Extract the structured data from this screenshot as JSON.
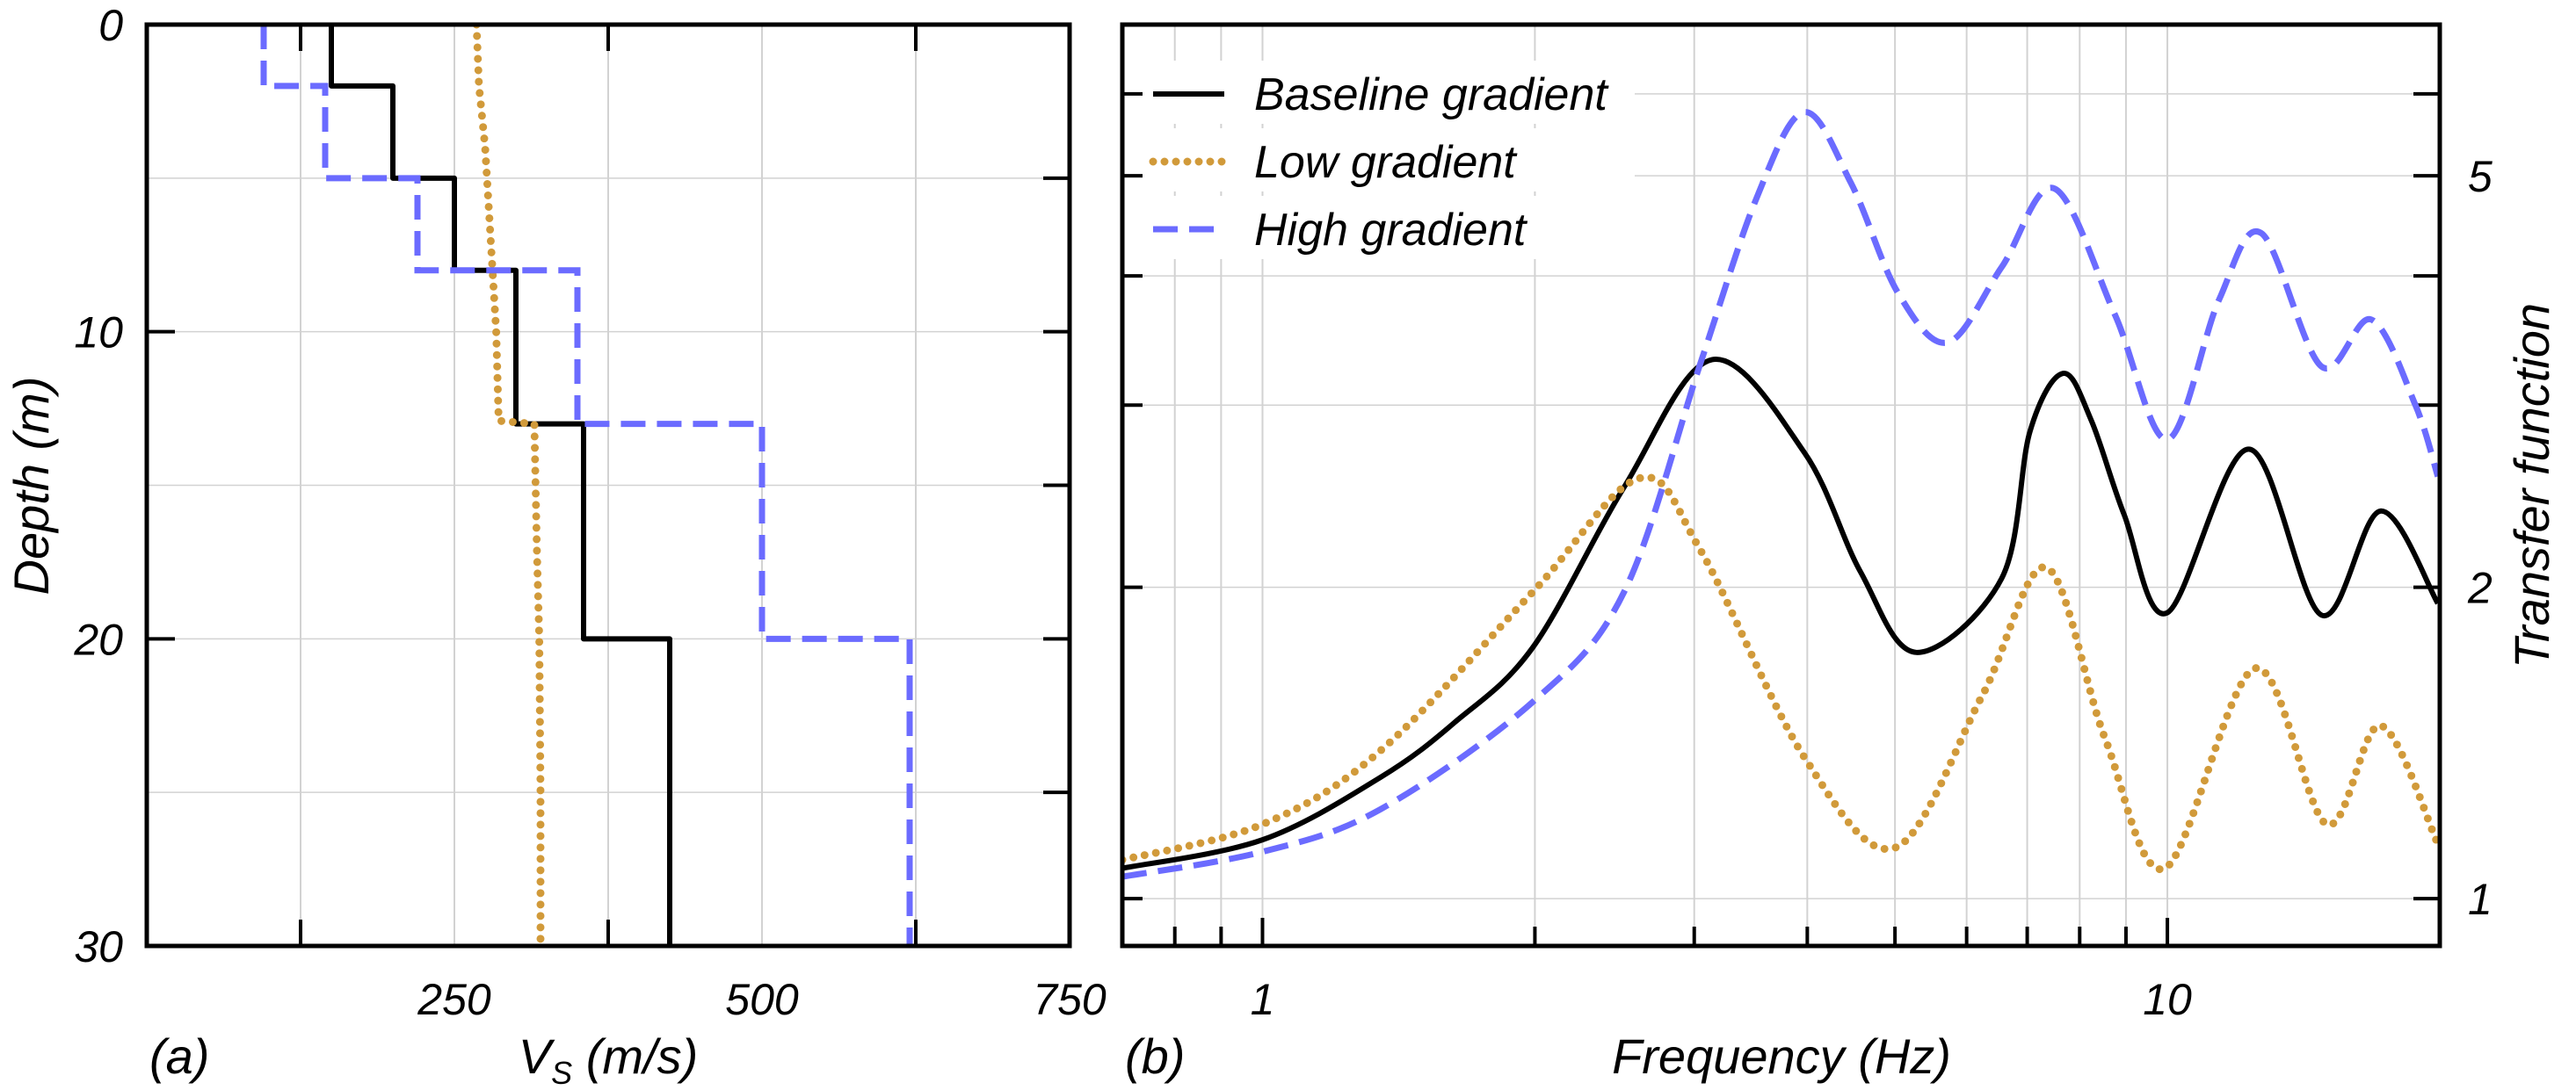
{
  "colors": {
    "baseline": "#000000",
    "low": "#d19a3a",
    "high": "#6b6bff",
    "grid": "#d2d2d2"
  },
  "legend": [
    {
      "key": "baseline",
      "label": "Baseline gradient",
      "style": "solid"
    },
    {
      "key": "low",
      "label": "Low gradient",
      "style": "dotted"
    },
    {
      "key": "high",
      "label": "High gradient",
      "style": "dashed"
    }
  ],
  "chart_data": [
    {
      "type": "line",
      "panel_label": "(a)",
      "xlabel": {
        "symbol": "V",
        "subscript": "S",
        "unit": " (m/s)"
      },
      "ylabel": "Depth (m)",
      "xlim": [
        0,
        750
      ],
      "ylim": [
        30,
        0
      ],
      "y_inverted": true,
      "xtick_labels": [
        "250",
        "500",
        "750"
      ],
      "xticks": [
        250,
        500,
        750
      ],
      "ytick_labels": [
        "0",
        "10",
        "20",
        "30"
      ],
      "yticks": [
        0,
        10,
        20,
        30
      ],
      "x_grid": [
        125,
        250,
        375,
        500,
        625
      ],
      "y_grid": [
        5,
        10,
        15,
        20,
        25
      ],
      "grid": true,
      "series": [
        {
          "name": "Baseline gradient",
          "key": "baseline",
          "kind": "step",
          "layers": [
            {
              "top": 0,
              "bottom": 2,
              "vs": 150
            },
            {
              "top": 2,
              "bottom": 5,
              "vs": 200
            },
            {
              "top": 5,
              "bottom": 8,
              "vs": 250
            },
            {
              "top": 8,
              "bottom": 13,
              "vs": 300
            },
            {
              "top": 13,
              "bottom": 20,
              "vs": 355
            },
            {
              "top": 20,
              "bottom": 30,
              "vs": 425
            }
          ]
        },
        {
          "name": "Low gradient",
          "key": "low",
          "kind": "points",
          "points": [
            [
              268,
              0
            ],
            [
              270,
              2
            ],
            [
              275,
              4
            ],
            [
              278,
              6
            ],
            [
              281,
              8
            ],
            [
              284,
              10
            ],
            [
              286,
              12.9
            ],
            [
              315,
              13
            ],
            [
              317,
              17
            ],
            [
              319,
              20
            ],
            [
              320,
              25
            ],
            [
              320,
              30
            ]
          ]
        },
        {
          "name": "High gradient",
          "key": "high",
          "kind": "step",
          "layers": [
            {
              "top": 0,
              "bottom": 2,
              "vs": 95
            },
            {
              "top": 2,
              "bottom": 5,
              "vs": 145
            },
            {
              "top": 5,
              "bottom": 8,
              "vs": 220
            },
            {
              "top": 8,
              "bottom": 13,
              "vs": 350
            },
            {
              "top": 13,
              "bottom": 20,
              "vs": 500
            },
            {
              "top": 20,
              "bottom": 30,
              "vs": 620
            }
          ]
        }
      ]
    },
    {
      "type": "line",
      "panel_label": "(b)",
      "xlabel": "Frequency (Hz)",
      "ylabel": "Transfer function",
      "xscale": "log",
      "yscale": "log",
      "xlim": [
        0.7,
        20
      ],
      "ylim": [
        0.9,
        7
      ],
      "xtick_labels": [
        "1",
        "10"
      ],
      "xticks": [
        1,
        10
      ],
      "ytick_labels": [
        "1",
        "2",
        "5"
      ],
      "yticks": [
        1,
        2,
        5
      ],
      "x_grid": [
        0.8,
        0.9,
        1,
        2,
        3,
        4,
        5,
        6,
        7,
        8,
        9,
        10
      ],
      "y_grid": [
        1,
        2,
        3,
        4,
        5,
        6
      ],
      "grid": true,
      "legend_position": "top-left",
      "series": [
        {
          "name": "Baseline gradient",
          "key": "baseline",
          "x": [
            0.7,
            1.0,
            1.35,
            1.63,
            1.99,
            2.51,
            3.14,
            3.97,
            4.58,
            5.28,
            6.56,
            7.05,
            7.67,
            8.24,
            8.96,
            10.0,
            12.3,
            14.8,
            17.2,
            19.9
          ],
          "y": [
            1.07,
            1.14,
            1.31,
            1.48,
            1.75,
            2.5,
            3.32,
            2.7,
            2.07,
            1.73,
            2.04,
            2.83,
            3.22,
            2.9,
            2.35,
            1.89,
            2.72,
            1.88,
            2.37,
            1.93
          ]
        },
        {
          "name": "Low gradient",
          "key": "low",
          "x": [
            0.7,
            1.0,
            1.35,
            1.99,
            2.61,
            3.05,
            3.97,
            5.0,
            6.24,
            7.35,
            8.53,
            9.94,
            12.5,
            15.0,
            17.2,
            19.9
          ],
          "y": [
            1.09,
            1.18,
            1.39,
            1.98,
            2.55,
            2.17,
            1.37,
            1.12,
            1.57,
            2.09,
            1.43,
            1.07,
            1.67,
            1.18,
            1.47,
            1.13
          ]
        },
        {
          "name": "High gradient",
          "key": "high",
          "x": [
            0.7,
            1.0,
            1.35,
            1.99,
            2.51,
            3.05,
            3.52,
            3.97,
            4.47,
            5.04,
            5.72,
            6.56,
            7.5,
            8.75,
            10.0,
            11.4,
            12.7,
            14.8,
            16.8,
            18.8,
            19.9
          ],
          "y": [
            1.05,
            1.11,
            1.22,
            1.55,
            1.98,
            3.3,
            4.77,
            5.76,
            4.92,
            3.85,
            3.45,
            4.08,
            4.86,
            3.67,
            2.78,
            3.79,
            4.4,
            3.27,
            3.63,
            3.0,
            2.56
          ]
        }
      ]
    }
  ]
}
